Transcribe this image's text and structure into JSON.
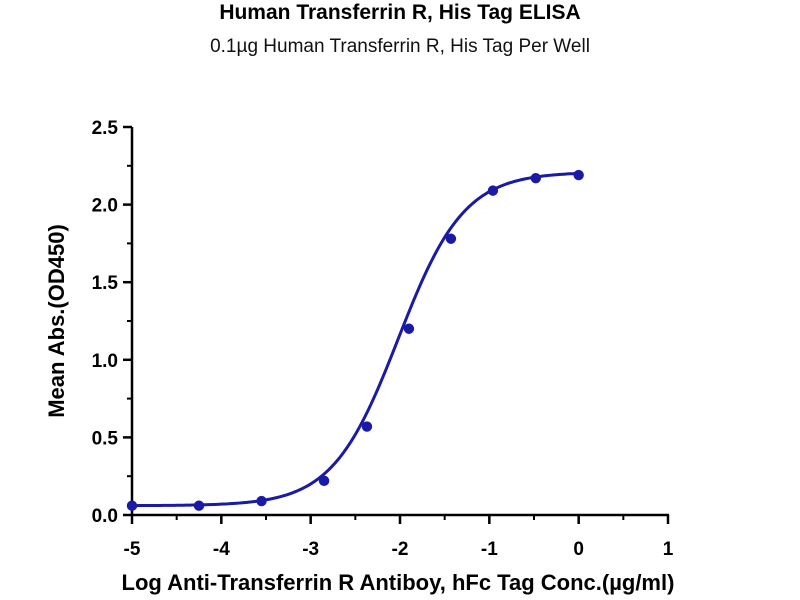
{
  "chart_data": {
    "type": "scatter",
    "title": "Human Transferrin R, His Tag ELISA",
    "subtitle": "0.1µg Human Transferrin R, His Tag Per Well",
    "xlabel": "Log Anti-Transferrin R Antiboy, hFc Tag Conc.(µg/ml)",
    "ylabel": "Mean Abs.(OD450)",
    "xlim": [
      -5,
      1
    ],
    "ylim": [
      0,
      2.5
    ],
    "xticks": [
      "-5",
      "-4",
      "-3",
      "-2",
      "-1",
      "0",
      "1"
    ],
    "yticks": [
      "0.0",
      "0.5",
      "1.0",
      "1.5",
      "2.0",
      "2.5"
    ],
    "grid": false,
    "series": [
      {
        "x": [
          -5.0,
          -4.25,
          -3.55,
          -2.85,
          -2.37,
          -1.9,
          -1.43,
          -0.96,
          -0.48,
          0.0
        ],
        "y": [
          0.06,
          0.06,
          0.09,
          0.22,
          0.57,
          1.2,
          1.78,
          2.09,
          2.17,
          2.19
        ],
        "color": "#1a1aa6",
        "fit": "four-parameter-logistic"
      }
    ]
  }
}
